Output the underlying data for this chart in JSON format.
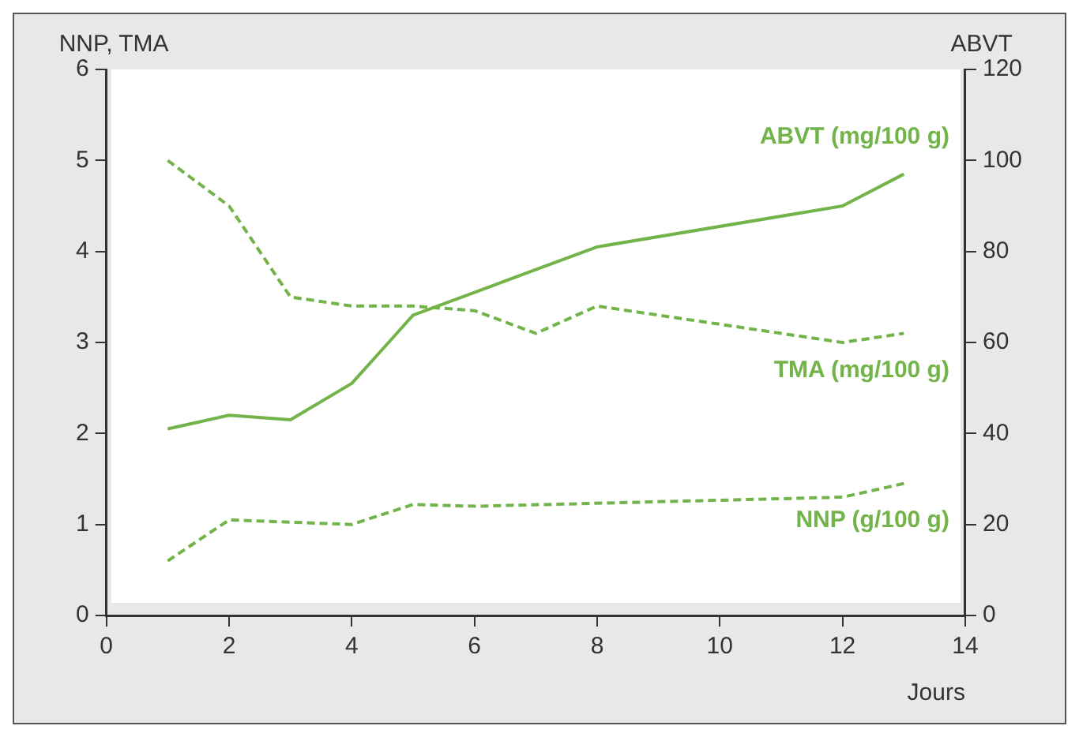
{
  "chart_data": {
    "type": "line",
    "xlabel": "Jours",
    "ylabel": "NNP, TMA",
    "y2label": "ABVT",
    "xlim": [
      0,
      14
    ],
    "xticks": [
      0,
      2,
      4,
      6,
      8,
      10,
      12,
      14
    ],
    "ylim": [
      0,
      6
    ],
    "yticks": [
      0,
      1,
      2,
      3,
      4,
      5,
      6
    ],
    "y2lim": [
      0,
      120
    ],
    "y2ticks": [
      0,
      20,
      40,
      60,
      80,
      100,
      120
    ],
    "grid": false,
    "legend": false,
    "marker": "none",
    "series": [
      {
        "name": "ABVT (mg/100 g)",
        "color": "#72b34a",
        "axis": "y2",
        "line_style": "solid",
        "x": [
          1,
          2,
          3,
          4,
          5,
          6,
          7,
          8,
          12,
          13
        ],
        "values": [
          41,
          44,
          43,
          51,
          66,
          71,
          76,
          81,
          90,
          97
        ]
      },
      {
        "name": "TMA (mg/100 g)",
        "color": "#72b34a",
        "line_style": "dashed",
        "x": [
          1,
          2,
          3,
          4,
          5,
          6,
          7,
          8,
          12,
          13
        ],
        "values": [
          5.0,
          4.5,
          3.5,
          3.4,
          3.4,
          3.35,
          3.1,
          3.4,
          3.0,
          3.1
        ]
      },
      {
        "name": "NNP (g/100 g)",
        "color": "#72b34a",
        "line_style": "dashed",
        "x": [
          1,
          2,
          4,
          5,
          6,
          12,
          13
        ],
        "values": [
          0.6,
          1.05,
          1.0,
          1.22,
          1.2,
          1.3,
          1.45
        ]
      }
    ]
  }
}
